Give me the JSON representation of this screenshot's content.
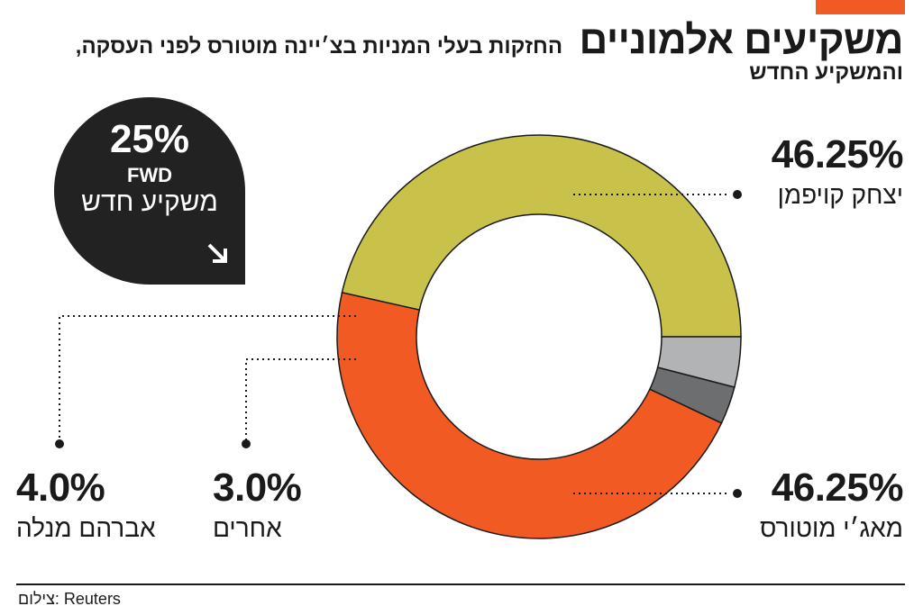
{
  "header": {
    "title": "משקיעים אלמוניים",
    "subtitle": "החזקות בעלי המניות בצ׳יינה מוטורס לפני העסקה, והמשקיע החדש"
  },
  "badge": {
    "value": "25%",
    "brand": "FWD",
    "label": "משקיע חדש",
    "color": "#222222"
  },
  "chart_data": {
    "type": "pie",
    "style": "donut",
    "title": "",
    "slices": [
      {
        "label": "יצחק קויפמן",
        "value": 46.25,
        "value_text": "46.25%",
        "color": "#c9c24a"
      },
      {
        "label": "מאג׳י מוטורס",
        "value": 46.25,
        "value_text": "46.25%",
        "color": "#f15a22"
      },
      {
        "label": "אחרים",
        "value": 3.0,
        "value_text": "3.0%",
        "color": "#6d6e70"
      },
      {
        "label": "אברהם מנלה",
        "value": 4.0,
        "value_text": "4.0%",
        "color": "#b2b3b5"
      }
    ]
  },
  "footer": {
    "credit": "צילום: Reuters"
  },
  "colors": {
    "accent": "#f15a22",
    "text": "#1a1a1a"
  }
}
